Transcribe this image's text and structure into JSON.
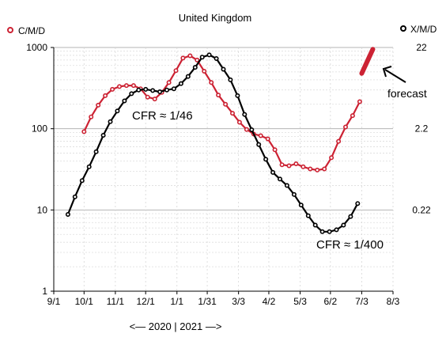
{
  "chart_data": {
    "type": "line",
    "title": "United Kingdom",
    "y_scale": "log",
    "ylim": [
      1,
      1000
    ],
    "grid": true,
    "x_tick_labels": [
      "9/1",
      "10/1",
      "11/1",
      "12/1",
      "1/1",
      "1/31",
      "3/3",
      "4/2",
      "5/3",
      "6/2",
      "7/3",
      "8/3"
    ],
    "x_tick_days": [
      0,
      30,
      61,
      91,
      122,
      152,
      183,
      213,
      244,
      274,
      305,
      336
    ],
    "y_tick_values": [
      1,
      10,
      100,
      1000
    ],
    "y_tick_labels": [
      "1",
      "10",
      "100",
      "1000"
    ],
    "right_axis": {
      "values": [
        10,
        100,
        1000
      ],
      "labels": [
        "0.22",
        "2.2",
        "22"
      ]
    },
    "legend": {
      "left": {
        "label": "C/M/D",
        "color": "#cc2233"
      },
      "right": {
        "label": "X/M/D",
        "color": "#000000"
      }
    },
    "year_caption": "<— 2020  |  2021 —>",
    "annotations": {
      "cfr_high": "CFR ≈ 1/46",
      "cfr_low": "CFR ≈ 1/400",
      "forecast": "forecast"
    },
    "series": [
      {
        "name": "C/M/D",
        "color": "#cc2233",
        "x": [
          30,
          37,
          44,
          51,
          58,
          65,
          72,
          79,
          86,
          93,
          100,
          107,
          114,
          121,
          128,
          135,
          142,
          149,
          156,
          163,
          170,
          177,
          184,
          191,
          198,
          205,
          212,
          219,
          226,
          233,
          240,
          247,
          254,
          261,
          268,
          275,
          282,
          289,
          296,
          303
        ],
        "y": [
          92,
          140,
          195,
          255,
          305,
          330,
          340,
          340,
          310,
          245,
          232,
          280,
          370,
          520,
          740,
          790,
          700,
          510,
          370,
          260,
          200,
          155,
          120,
          98,
          86,
          82,
          75,
          55,
          36,
          35,
          37,
          34,
          32,
          31,
          32,
          44,
          70,
          105,
          145,
          215
        ]
      },
      {
        "name": "X/M/D",
        "color": "#000000",
        "x": [
          14,
          21,
          28,
          35,
          42,
          49,
          56,
          63,
          70,
          77,
          84,
          91,
          98,
          105,
          112,
          119,
          126,
          133,
          140,
          147,
          154,
          161,
          168,
          175,
          182,
          189,
          196,
          203,
          210,
          217,
          224,
          231,
          238,
          245,
          252,
          259,
          266,
          273,
          280,
          287,
          294,
          301
        ],
        "y": [
          8.8,
          14.5,
          23,
          34,
          52,
          83,
          122,
          165,
          220,
          270,
          300,
          305,
          295,
          285,
          300,
          310,
          360,
          440,
          570,
          760,
          810,
          730,
          540,
          400,
          255,
          150,
          97,
          64,
          42,
          29,
          24,
          20,
          15.5,
          11.5,
          8.5,
          6.5,
          5.4,
          5.4,
          5.7,
          6.5,
          8.3,
          12
        ]
      }
    ],
    "forecast_line": {
      "x": [
        305,
        316
      ],
      "y": [
        480,
        950
      ],
      "color": "#cc2233"
    }
  }
}
